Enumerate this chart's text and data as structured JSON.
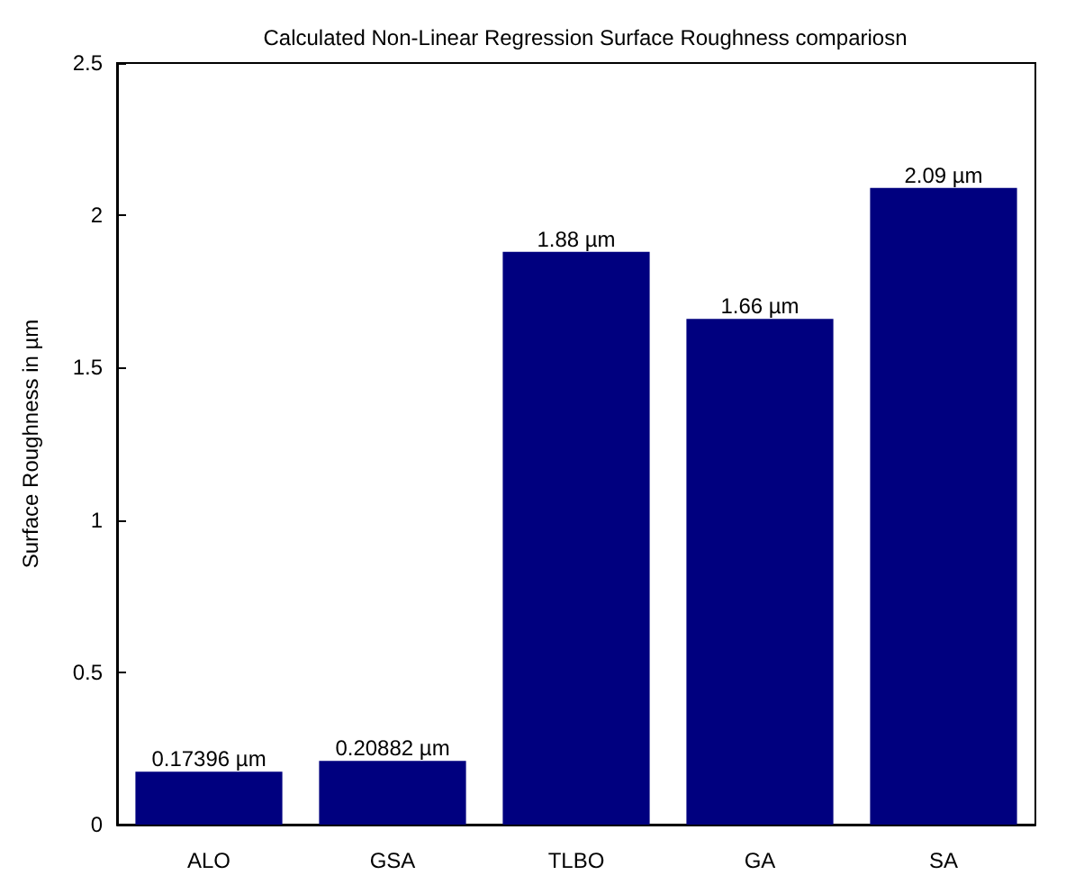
{
  "chart_data": {
    "type": "bar",
    "title": "Calculated Non-Linear Regression Surface Roughness compariosn",
    "ylabel": "Surface Roughness in µm",
    "categories": [
      "ALO",
      "GSA",
      "TLBO",
      "GA",
      "SA"
    ],
    "values": [
      0.17396,
      0.20882,
      1.88,
      1.66,
      2.09
    ],
    "value_labels": [
      "0.17396 µm",
      "0.20882 µm",
      "1.88 µm",
      "1.66 µm",
      "2.09 µm"
    ],
    "color": "#00007f",
    "ylim": [
      0,
      2.5
    ],
    "yticks": [
      0,
      0.5,
      1,
      1.5,
      2,
      2.5
    ]
  }
}
